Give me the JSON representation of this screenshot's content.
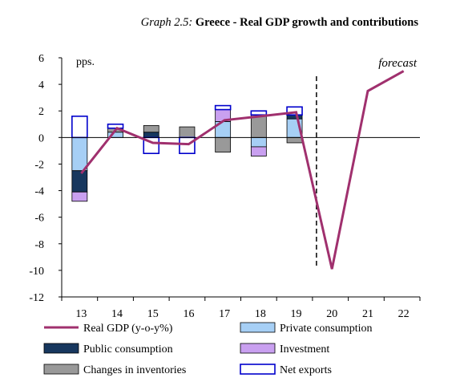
{
  "chart_data": {
    "type": "bar",
    "title_label": "Graph 2.5:",
    "title_text": "Greece - Real GDP growth and contributions",
    "ylabel": "pps.",
    "ylim": [
      -12,
      6
    ],
    "yticks": [
      6,
      4,
      2,
      0,
      -2,
      -4,
      -6,
      -8,
      -10,
      -12
    ],
    "categories": [
      "13",
      "14",
      "15",
      "16",
      "17",
      "18",
      "19",
      "20",
      "21",
      "22"
    ],
    "forecast_label": "forecast",
    "forecast_start_after": "19",
    "stacked_bar_series": [
      {
        "name": "Private consumption",
        "fill": "#a6cff5",
        "stroke": "#000000",
        "values": [
          -2.5,
          0.4,
          0.0,
          0.0,
          1.2,
          -0.7,
          1.4
        ]
      },
      {
        "name": "Public consumption",
        "fill": "#17375e",
        "stroke": "#000000",
        "values": [
          -1.6,
          0.0,
          0.4,
          0.0,
          0.0,
          0.0,
          0.3
        ]
      },
      {
        "name": "Investment",
        "fill": "#c9a0f0",
        "stroke": "#000000",
        "values": [
          -0.7,
          0.0,
          0.0,
          0.0,
          0.9,
          -0.7,
          0.0
        ]
      },
      {
        "name": "Changes in inventories",
        "fill": "#999999",
        "stroke": "#000000",
        "values": [
          0.0,
          0.3,
          0.5,
          0.8,
          -1.1,
          1.7,
          -0.4
        ]
      },
      {
        "name": "Net exports",
        "fill": "none",
        "stroke": "#0000cc",
        "values": [
          1.6,
          0.3,
          -1.2,
          -1.2,
          0.3,
          0.3,
          0.6
        ]
      }
    ],
    "line_series": {
      "name": "Real GDP (y-o-y%)",
      "color": "#a0306e",
      "values": [
        -2.7,
        0.7,
        -0.4,
        -0.5,
        1.3,
        1.6,
        1.9,
        -9.9,
        3.5,
        5.0
      ]
    },
    "legend_order": [
      "Real GDP (y-o-y%)",
      "Private consumption",
      "Public consumption",
      "Investment",
      "Changes in inventories",
      "Net exports"
    ]
  }
}
